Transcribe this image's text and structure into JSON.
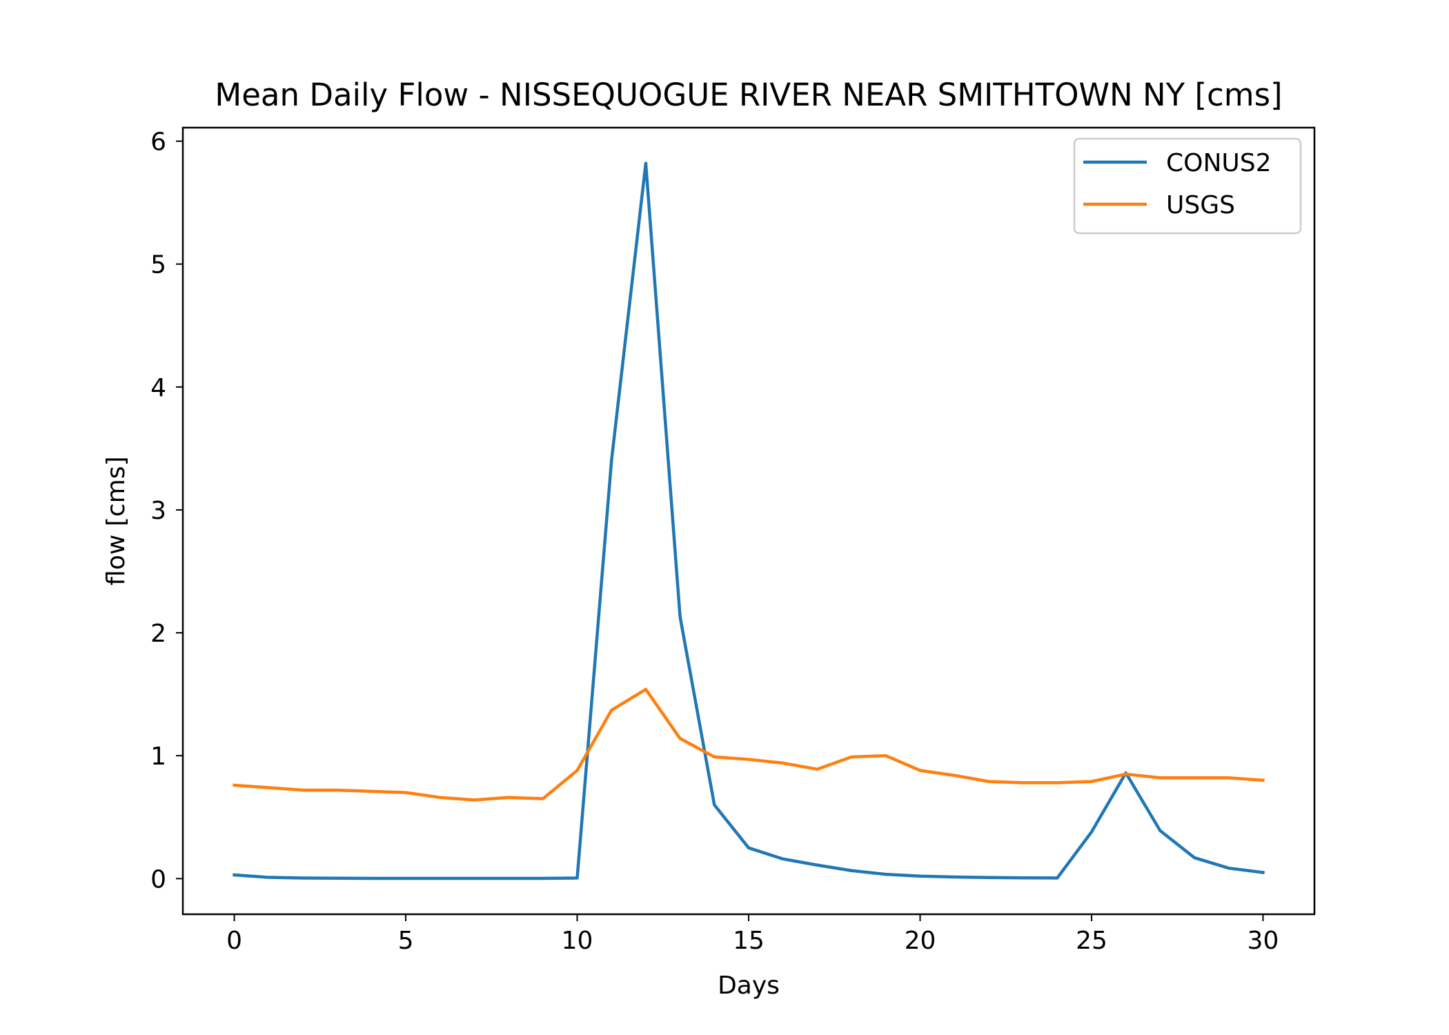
{
  "chart_data": {
    "type": "line",
    "title": "Mean Daily Flow - NISSEQUOGUE RIVER NEAR SMITHTOWN NY [cms]",
    "xlabel": "Days",
    "ylabel": "flow [cms]",
    "xlim": [
      -1.5,
      31.5
    ],
    "ylim": [
      -0.29,
      6.11
    ],
    "xticks": [
      0,
      5,
      10,
      15,
      20,
      25,
      30
    ],
    "yticks": [
      0,
      1,
      2,
      3,
      4,
      5,
      6
    ],
    "grid": false,
    "legend": "top-right",
    "x": [
      0,
      1,
      2,
      3,
      4,
      5,
      6,
      7,
      8,
      9,
      10,
      11,
      12,
      13,
      14,
      15,
      16,
      17,
      18,
      19,
      20,
      21,
      22,
      23,
      24,
      25,
      26,
      27,
      28,
      29,
      30
    ],
    "series": [
      {
        "name": "CONUS2",
        "color": "#1f77b4",
        "values": [
          0.03,
          0.01,
          0.005,
          0.003,
          0.002,
          0.002,
          0.002,
          0.002,
          0.002,
          0.002,
          0.005,
          3.4,
          5.82,
          2.13,
          0.6,
          0.25,
          0.16,
          0.11,
          0.065,
          0.035,
          0.02,
          0.013,
          0.009,
          0.006,
          0.005,
          0.38,
          0.86,
          0.39,
          0.17,
          0.085,
          0.05
        ]
      },
      {
        "name": "USGS",
        "color": "#ff7f0e",
        "values": [
          0.76,
          0.74,
          0.72,
          0.72,
          0.71,
          0.7,
          0.66,
          0.64,
          0.66,
          0.65,
          0.88,
          1.37,
          1.54,
          1.14,
          0.99,
          0.97,
          0.94,
          0.89,
          0.99,
          1.0,
          0.88,
          0.84,
          0.79,
          0.78,
          0.78,
          0.79,
          0.85,
          0.82,
          0.82,
          0.82,
          0.8
        ]
      }
    ]
  }
}
